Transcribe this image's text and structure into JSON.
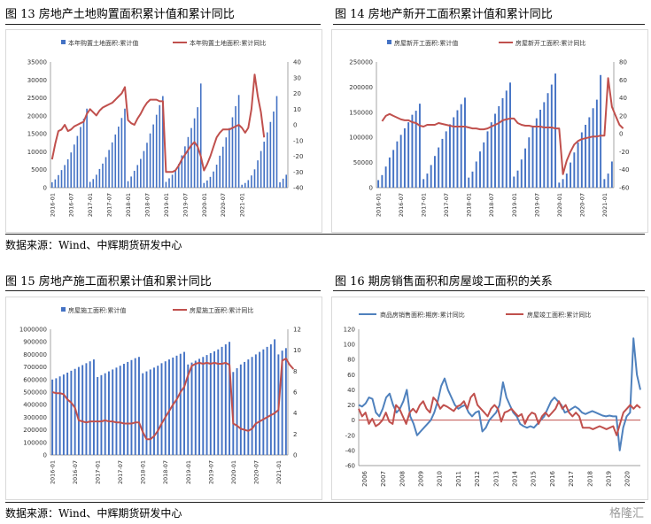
{
  "panels": [
    {
      "title": "图 13  房地产土地购置面积累计值和累计同比"
    },
    {
      "title": "图 14  房地产新开工面积累计值和累计同比"
    },
    {
      "title": "图 15  房地产施工面积累计值和累计同比"
    },
    {
      "title": "图 16  期房销售面积和房屋竣工面积的关系"
    }
  ],
  "source_lines": [
    "数据来源：Wind、中辉期货研发中心",
    "数据来源：Wind、中辉期货研发中心"
  ],
  "watermark": "格隆汇",
  "colors": {
    "bar": "#4472c4",
    "red": "#c0504d",
    "blue": "#4f81bd",
    "grid": "#d9d9d9",
    "axis": "#7f7f7f"
  },
  "chart_data": [
    {
      "type": "bar+line",
      "title": "",
      "legend": [
        "本年购置土地面积:累计值",
        "本年购置土地面积:累计同比"
      ],
      "xticks": [
        "2016-01",
        "2016-07",
        "2017-01",
        "2017-07",
        "2018-01",
        "2018-07",
        "2019-01",
        "2019-07",
        "2020-01",
        "2020-07",
        "2021-01"
      ],
      "ylim_left": [
        0,
        35000
      ],
      "yticks_left": [
        0,
        5000,
        10000,
        15000,
        20000,
        25000,
        30000,
        35000
      ],
      "ylim_right": [
        -40,
        40
      ],
      "yticks_right": [
        -40,
        -30,
        -20,
        -10,
        0,
        10,
        20,
        30,
        40
      ],
      "bar_values": [
        1500,
        2300,
        3500,
        4900,
        6300,
        7900,
        9800,
        12000,
        14400,
        16900,
        19200,
        22000,
        1600,
        2400,
        3600,
        5200,
        6700,
        8500,
        10500,
        12600,
        14800,
        17000,
        19400,
        22000,
        1800,
        3100,
        4700,
        6300,
        8000,
        10200,
        12500,
        15100,
        17600,
        20300,
        23000,
        25500,
        1600,
        2600,
        3600,
        5000,
        6600,
        9000,
        11500,
        14100,
        16600,
        19300,
        22400,
        29000,
        1300,
        2000,
        3000,
        4500,
        6400,
        8900,
        11400,
        14000,
        16600,
        19600,
        22700,
        25800,
        800,
        1300,
        2100,
        3400,
        5100,
        7600,
        10200,
        12800,
        15400,
        18300,
        21200,
        25500,
        1500,
        2500,
        3600
      ],
      "line_values": [
        -22,
        -12,
        -4,
        -3,
        0,
        -4,
        -3,
        -1,
        0,
        1,
        2,
        7,
        10,
        8,
        6,
        9,
        11,
        12,
        13,
        14,
        16,
        18,
        20,
        24,
        3,
        1,
        0,
        4,
        7,
        11,
        14,
        16,
        16,
        16,
        15,
        15,
        -30,
        -30,
        -30,
        -29,
        -26,
        -22,
        -19,
        -16,
        -13,
        -11,
        -14,
        -20,
        -29,
        -25,
        -20,
        -14,
        -8,
        -5,
        -3,
        -3,
        -3,
        -2,
        -1,
        0,
        -2,
        -5,
        -2,
        10,
        32,
        18,
        8,
        -8
      ],
      "line_start_index": 0
    },
    {
      "type": "bar+line",
      "title": "",
      "legend": [
        "房屋新开工面积:累计值",
        "房屋新开工面积:累计同比"
      ],
      "xticks": [
        "2016-01",
        "2016-07",
        "2017-01",
        "2017-07",
        "2018-01",
        "2018-07",
        "2019-01",
        "2019-07",
        "2020-01",
        "2020-07",
        "2021-01"
      ],
      "ylim_left": [
        0,
        250000
      ],
      "yticks_left": [
        0,
        50000,
        100000,
        150000,
        200000,
        250000
      ],
      "ylim_right": [
        -60,
        80
      ],
      "yticks_right": [
        -60,
        -40,
        -20,
        0,
        20,
        40,
        60,
        80
      ],
      "bar_values": [
        15000,
        25000,
        42000,
        60000,
        75000,
        92000,
        105000,
        118000,
        130000,
        145000,
        153000,
        167000,
        17000,
        28000,
        45000,
        63000,
        80000,
        97000,
        112000,
        126000,
        140000,
        154000,
        166000,
        179000,
        20000,
        32000,
        52000,
        72000,
        90000,
        112000,
        130000,
        147000,
        162000,
        178000,
        193000,
        209000,
        22000,
        34000,
        56000,
        78000,
        100000,
        120000,
        138000,
        155000,
        170000,
        188000,
        205000,
        227000,
        10000,
        17000,
        28000,
        50000,
        70000,
        90000,
        110000,
        125000,
        140000,
        158000,
        175000,
        224000,
        17000,
        28000,
        52000
      ],
      "line_values": [
        14,
        20,
        22,
        20,
        18,
        16,
        15,
        15,
        13,
        12,
        9,
        8,
        10,
        10,
        10,
        12,
        11,
        10,
        9,
        8,
        8,
        8,
        8,
        7,
        6,
        6,
        5,
        5,
        6,
        8,
        10,
        12,
        15,
        16,
        17,
        17,
        12,
        10,
        9,
        9,
        8,
        8,
        8,
        7,
        7,
        7,
        6,
        6,
        -45,
        -30,
        -20,
        -12,
        -8,
        -6,
        -5,
        -4,
        -3,
        -3,
        -2,
        -2,
        62,
        30,
        20,
        10,
        6
      ],
      "line_start_index": 1
    },
    {
      "type": "bar+line",
      "title": "",
      "legend": [
        "房屋施工面积:累计值",
        "房屋施工面积:累计同比"
      ],
      "xticks": [
        "2016-01",
        "2016-07",
        "2017-01",
        "2017-07",
        "2018-01",
        "2018-07",
        "2019-01",
        "2019-07",
        "2020-01",
        "2020-07",
        "2021-01"
      ],
      "ylim_left": [
        0,
        1000000
      ],
      "yticks_left": [
        0,
        100000,
        200000,
        300000,
        400000,
        500000,
        600000,
        700000,
        800000,
        900000,
        1000000
      ],
      "ylim_right": [
        0,
        12
      ],
      "yticks_right": [
        0,
        2,
        4,
        6,
        8,
        10,
        12
      ],
      "bar_values": [
        600000,
        610000,
        625000,
        640000,
        655000,
        670000,
        685000,
        700000,
        715000,
        730000,
        745000,
        760000,
        620000,
        635000,
        650000,
        665000,
        680000,
        695000,
        710000,
        725000,
        740000,
        755000,
        770000,
        780000,
        650000,
        665000,
        680000,
        695000,
        710000,
        730000,
        745000,
        760000,
        775000,
        790000,
        805000,
        820000,
        720000,
        735000,
        750000,
        765000,
        780000,
        795000,
        810000,
        825000,
        840000,
        860000,
        880000,
        900000,
        660000,
        690000,
        720000,
        740000,
        760000,
        780000,
        800000,
        820000,
        840000,
        860000,
        880000,
        920000,
        800000,
        830000,
        850000
      ],
      "line_values": [
        6,
        5.9,
        5.9,
        5.8,
        5.3,
        5,
        4.5,
        3.3,
        3.2,
        3.1,
        3.2,
        3.2,
        3.2,
        3.2,
        3.3,
        3.2,
        3.2,
        3.1,
        3.1,
        3,
        3,
        3,
        3.1,
        3.1,
        2.2,
        1.5,
        1.5,
        1.8,
        2.3,
        3,
        3.6,
        4.2,
        4.8,
        5.3,
        6,
        6.5,
        7.6,
        8.5,
        8.7,
        8.8,
        8.7,
        8.8,
        8.7,
        8.8,
        8.7,
        8.7,
        8.8,
        8.6,
        3,
        2.8,
        2.5,
        2.4,
        2.3,
        2.5,
        3,
        3.2,
        3.4,
        3.6,
        3.8,
        4,
        4.3,
        9,
        9.2,
        8.6,
        8.2
      ],
      "line_start_index": 0
    },
    {
      "type": "line",
      "title": "",
      "legend": [
        "商品房销售面积:期房:累计同比",
        "房屋竣工面积:累计同比"
      ],
      "xticks": [
        "2006",
        "2007",
        "2008",
        "2009",
        "2010",
        "2011",
        "2012",
        "2013",
        "2014",
        "2015",
        "2016",
        "2017",
        "2018",
        "2019",
        "2020"
      ],
      "ylim": [
        -60,
        120
      ],
      "yticks": [
        -60,
        -40,
        -20,
        0,
        20,
        40,
        60,
        80,
        100,
        120
      ],
      "series": [
        {
          "name": "商品房销售面积:期房:累计同比",
          "color": "blue",
          "values": [
            20,
            18,
            22,
            30,
            28,
            10,
            5,
            15,
            30,
            35,
            20,
            10,
            15,
            25,
            40,
            5,
            -5,
            -20,
            -15,
            -10,
            -5,
            0,
            10,
            25,
            45,
            55,
            40,
            30,
            20,
            15,
            18,
            20,
            10,
            5,
            10,
            12,
            -15,
            -10,
            0,
            5,
            10,
            20,
            50,
            30,
            20,
            10,
            5,
            -5,
            -8,
            -10,
            -8,
            -10,
            -5,
            0,
            5,
            15,
            25,
            30,
            25,
            20,
            10,
            12,
            15,
            18,
            15,
            10,
            8,
            10,
            12,
            10,
            8,
            6,
            5,
            6,
            5,
            5,
            -40,
            -10,
            5,
            10,
            108,
            60,
            40
          ]
        },
        {
          "name": "房屋竣工面积:累计同比",
          "color": "red",
          "values": [
            15,
            5,
            10,
            -5,
            2,
            -8,
            -5,
            0,
            10,
            -2,
            -5,
            20,
            15,
            5,
            -5,
            10,
            15,
            10,
            20,
            25,
            15,
            10,
            30,
            25,
            15,
            20,
            18,
            15,
            12,
            18,
            20,
            25,
            15,
            30,
            35,
            20,
            15,
            10,
            5,
            15,
            20,
            15,
            -2,
            10,
            12,
            15,
            10,
            5,
            8,
            -5,
            5,
            10,
            8,
            -5,
            5,
            10,
            5,
            10,
            15,
            25,
            15,
            20,
            10,
            5,
            10,
            5,
            -10,
            -10,
            -10,
            -12,
            -10,
            -8,
            -10,
            -12,
            -10,
            -8,
            -20,
            -5,
            10,
            15,
            20,
            15,
            20,
            16
          ]
        }
      ]
    }
  ]
}
